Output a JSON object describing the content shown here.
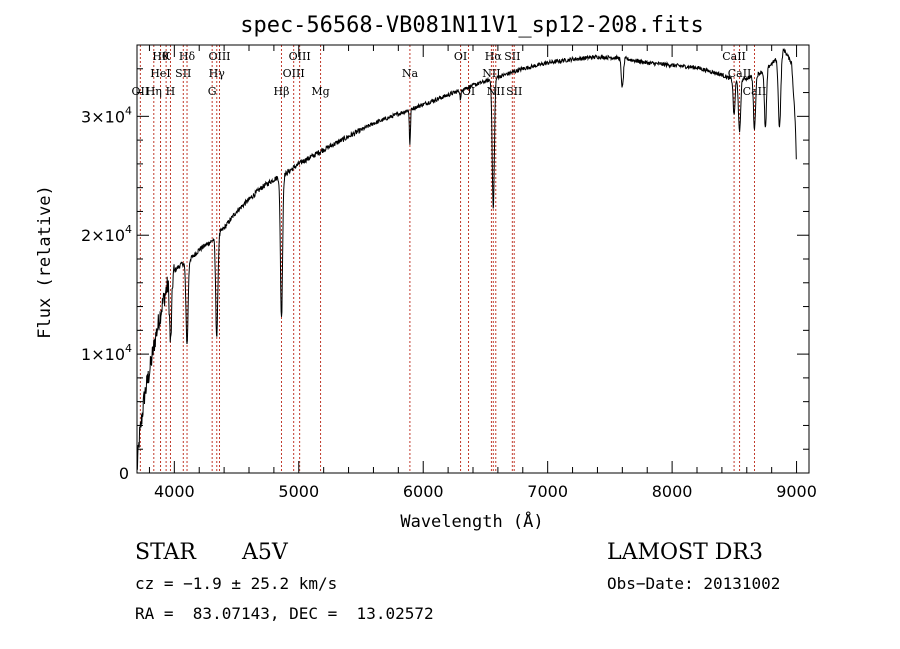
{
  "chart_data": {
    "type": "line",
    "title": "spec-56568-VB081N11V1_sp12-208.fits",
    "xlabel": "Wavelength (Å)",
    "ylabel": "Flux (relative)",
    "xlim": [
      3700,
      9100
    ],
    "ylim": [
      0,
      36000
    ],
    "xticks": [
      {
        "value": 4000,
        "label": "4000"
      },
      {
        "value": 5000,
        "label": "5000"
      },
      {
        "value": 6000,
        "label": "6000"
      },
      {
        "value": 7000,
        "label": "7000"
      },
      {
        "value": 8000,
        "label": "8000"
      },
      {
        "value": 9000,
        "label": "9000"
      }
    ],
    "yticks": [
      {
        "value": 0,
        "mant": "0",
        "exp": ""
      },
      {
        "value": 10000,
        "mant": "1×10",
        "exp": "4"
      },
      {
        "value": 20000,
        "mant": "2×10",
        "exp": "4"
      },
      {
        "value": 30000,
        "mant": "3×10",
        "exp": "4"
      }
    ],
    "continuum": [
      [
        3700,
        200
      ],
      [
        3720,
        3000
      ],
      [
        3760,
        6500
      ],
      [
        3800,
        8500
      ],
      [
        3850,
        11500
      ],
      [
        3900,
        14000
      ],
      [
        3950,
        16000
      ],
      [
        4000,
        17000
      ],
      [
        4050,
        17500
      ],
      [
        4100,
        17800
      ],
      [
        4150,
        18200
      ],
      [
        4200,
        18800
      ],
      [
        4300,
        19500
      ],
      [
        4400,
        20600
      ],
      [
        4500,
        22000
      ],
      [
        4600,
        23000
      ],
      [
        4700,
        24000
      ],
      [
        4800,
        24700
      ],
      [
        4900,
        25200
      ],
      [
        5000,
        26000
      ],
      [
        5200,
        27200
      ],
      [
        5400,
        28300
      ],
      [
        5600,
        29400
      ],
      [
        5800,
        30200
      ],
      [
        6000,
        31000
      ],
      [
        6200,
        31800
      ],
      [
        6400,
        32600
      ],
      [
        6600,
        33300
      ],
      [
        6800,
        34000
      ],
      [
        7000,
        34500
      ],
      [
        7200,
        34800
      ],
      [
        7400,
        35000
      ],
      [
        7600,
        34900
      ],
      [
        7800,
        34500
      ],
      [
        8000,
        34300
      ],
      [
        8200,
        34100
      ],
      [
        8400,
        33500
      ],
      [
        8500,
        33000
      ],
      [
        8600,
        33200
      ],
      [
        8700,
        33600
      ],
      [
        8800,
        34400
      ],
      [
        8900,
        35600
      ],
      [
        8960,
        34500
      ],
      [
        9000,
        28000
      ]
    ],
    "absorption_lines": [
      {
        "name": "H-eps",
        "wave": 3970,
        "depth": 5500,
        "width": 12
      },
      {
        "name": "H-delta",
        "wave": 4102,
        "depth": 7000,
        "width": 12
      },
      {
        "name": "H-gamma",
        "wave": 4341,
        "depth": 8500,
        "width": 12
      },
      {
        "name": "H-beta",
        "wave": 4861,
        "depth": 12000,
        "width": 12
      },
      {
        "name": "Na",
        "wave": 5893,
        "depth": 3000,
        "width": 6
      },
      {
        "name": "OI",
        "wave": 6300,
        "depth": 800,
        "width": 6
      },
      {
        "name": "H-alpha",
        "wave": 6563,
        "depth": 11000,
        "width": 12
      },
      {
        "name": "A-band",
        "wave": 7600,
        "depth": 2500,
        "width": 12
      },
      {
        "name": "CaII-a",
        "wave": 8498,
        "depth": 3000,
        "width": 10
      },
      {
        "name": "CaII-b",
        "wave": 8542,
        "depth": 4500,
        "width": 12
      },
      {
        "name": "CaII-c",
        "wave": 8662,
        "depth": 4500,
        "width": 12
      },
      {
        "name": "Pa-a",
        "wave": 8750,
        "depth": 5000,
        "width": 12
      },
      {
        "name": "Pa-b",
        "wave": 8863,
        "depth": 6000,
        "width": 14
      },
      {
        "name": "Pa-c",
        "wave": 9015,
        "depth": 9000,
        "width": 14
      }
    ],
    "line_markers": [
      {
        "wave": 3727,
        "label": "OII",
        "row": 2
      },
      {
        "wave": 3835,
        "label": "Hη",
        "row": 2
      },
      {
        "wave": 3889,
        "label": "Hθ",
        "row": 0
      },
      {
        "wave": 3889,
        "label": "HeI",
        "row": 1
      },
      {
        "wave": 3934,
        "label": "K",
        "row": 0
      },
      {
        "wave": 3969,
        "label": "H",
        "row": 2
      },
      {
        "wave": 4072,
        "label": "SII",
        "row": 1
      },
      {
        "wave": 4102,
        "label": "Hδ",
        "row": 0
      },
      {
        "wave": 4304,
        "label": "G",
        "row": 2
      },
      {
        "wave": 4341,
        "label": "Hγ",
        "row": 1
      },
      {
        "wave": 4363,
        "label": "OIII",
        "row": 0
      },
      {
        "wave": 4861,
        "label": "Hβ",
        "row": 2
      },
      {
        "wave": 4959,
        "label": "OIII",
        "row": 1
      },
      {
        "wave": 5007,
        "label": "OIII",
        "row": 0
      },
      {
        "wave": 5175,
        "label": "Mg",
        "row": 2
      },
      {
        "wave": 5893,
        "label": "Na",
        "row": 1
      },
      {
        "wave": 6300,
        "label": "OI",
        "row": 0
      },
      {
        "wave": 6364,
        "label": "OI",
        "row": 2
      },
      {
        "wave": 6548,
        "label": "NII",
        "row": 1
      },
      {
        "wave": 6563,
        "label": "Hα",
        "row": 0
      },
      {
        "wave": 6583,
        "label": "NII",
        "row": 2
      },
      {
        "wave": 6716,
        "label": "SII",
        "row": 0
      },
      {
        "wave": 6731,
        "label": "SII",
        "row": 2
      },
      {
        "wave": 8498,
        "label": "CaII",
        "row": 0
      },
      {
        "wave": 8542,
        "label": "CaII",
        "row": 1
      },
      {
        "wave": 8662,
        "label": "CaII",
        "row": 2
      }
    ]
  },
  "footer": {
    "object_class": "STAR",
    "subclass": "A5V",
    "survey": "LAMOST DR3",
    "cz": "cz = −1.9 ± 25.2 km/s",
    "obs_date": "Obs−Date: 20131002",
    "coords": "RA =  83.07143, DEC =  13.02572"
  }
}
